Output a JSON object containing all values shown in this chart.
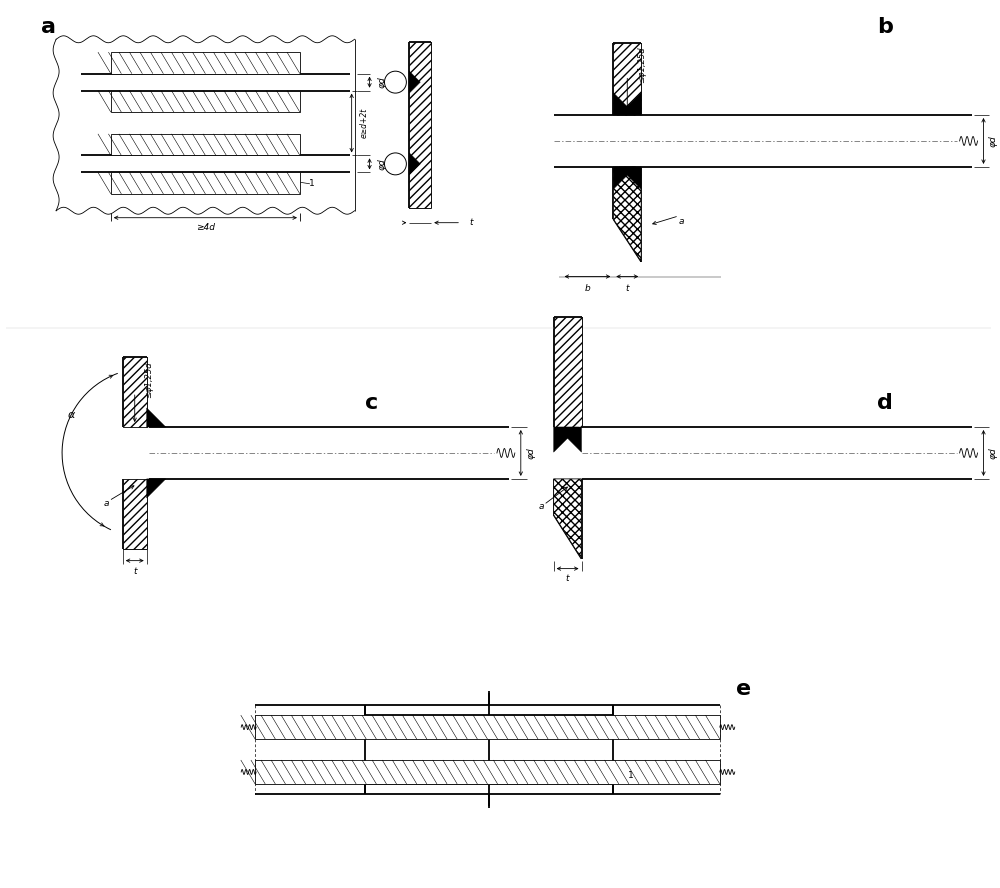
{
  "bg_color": "#ffffff",
  "line_color": "#000000",
  "fig_width": 10.0,
  "fig_height": 8.88,
  "label_a": "a",
  "label_b": "b",
  "label_c": "c",
  "label_d": "d",
  "label_e": "e"
}
